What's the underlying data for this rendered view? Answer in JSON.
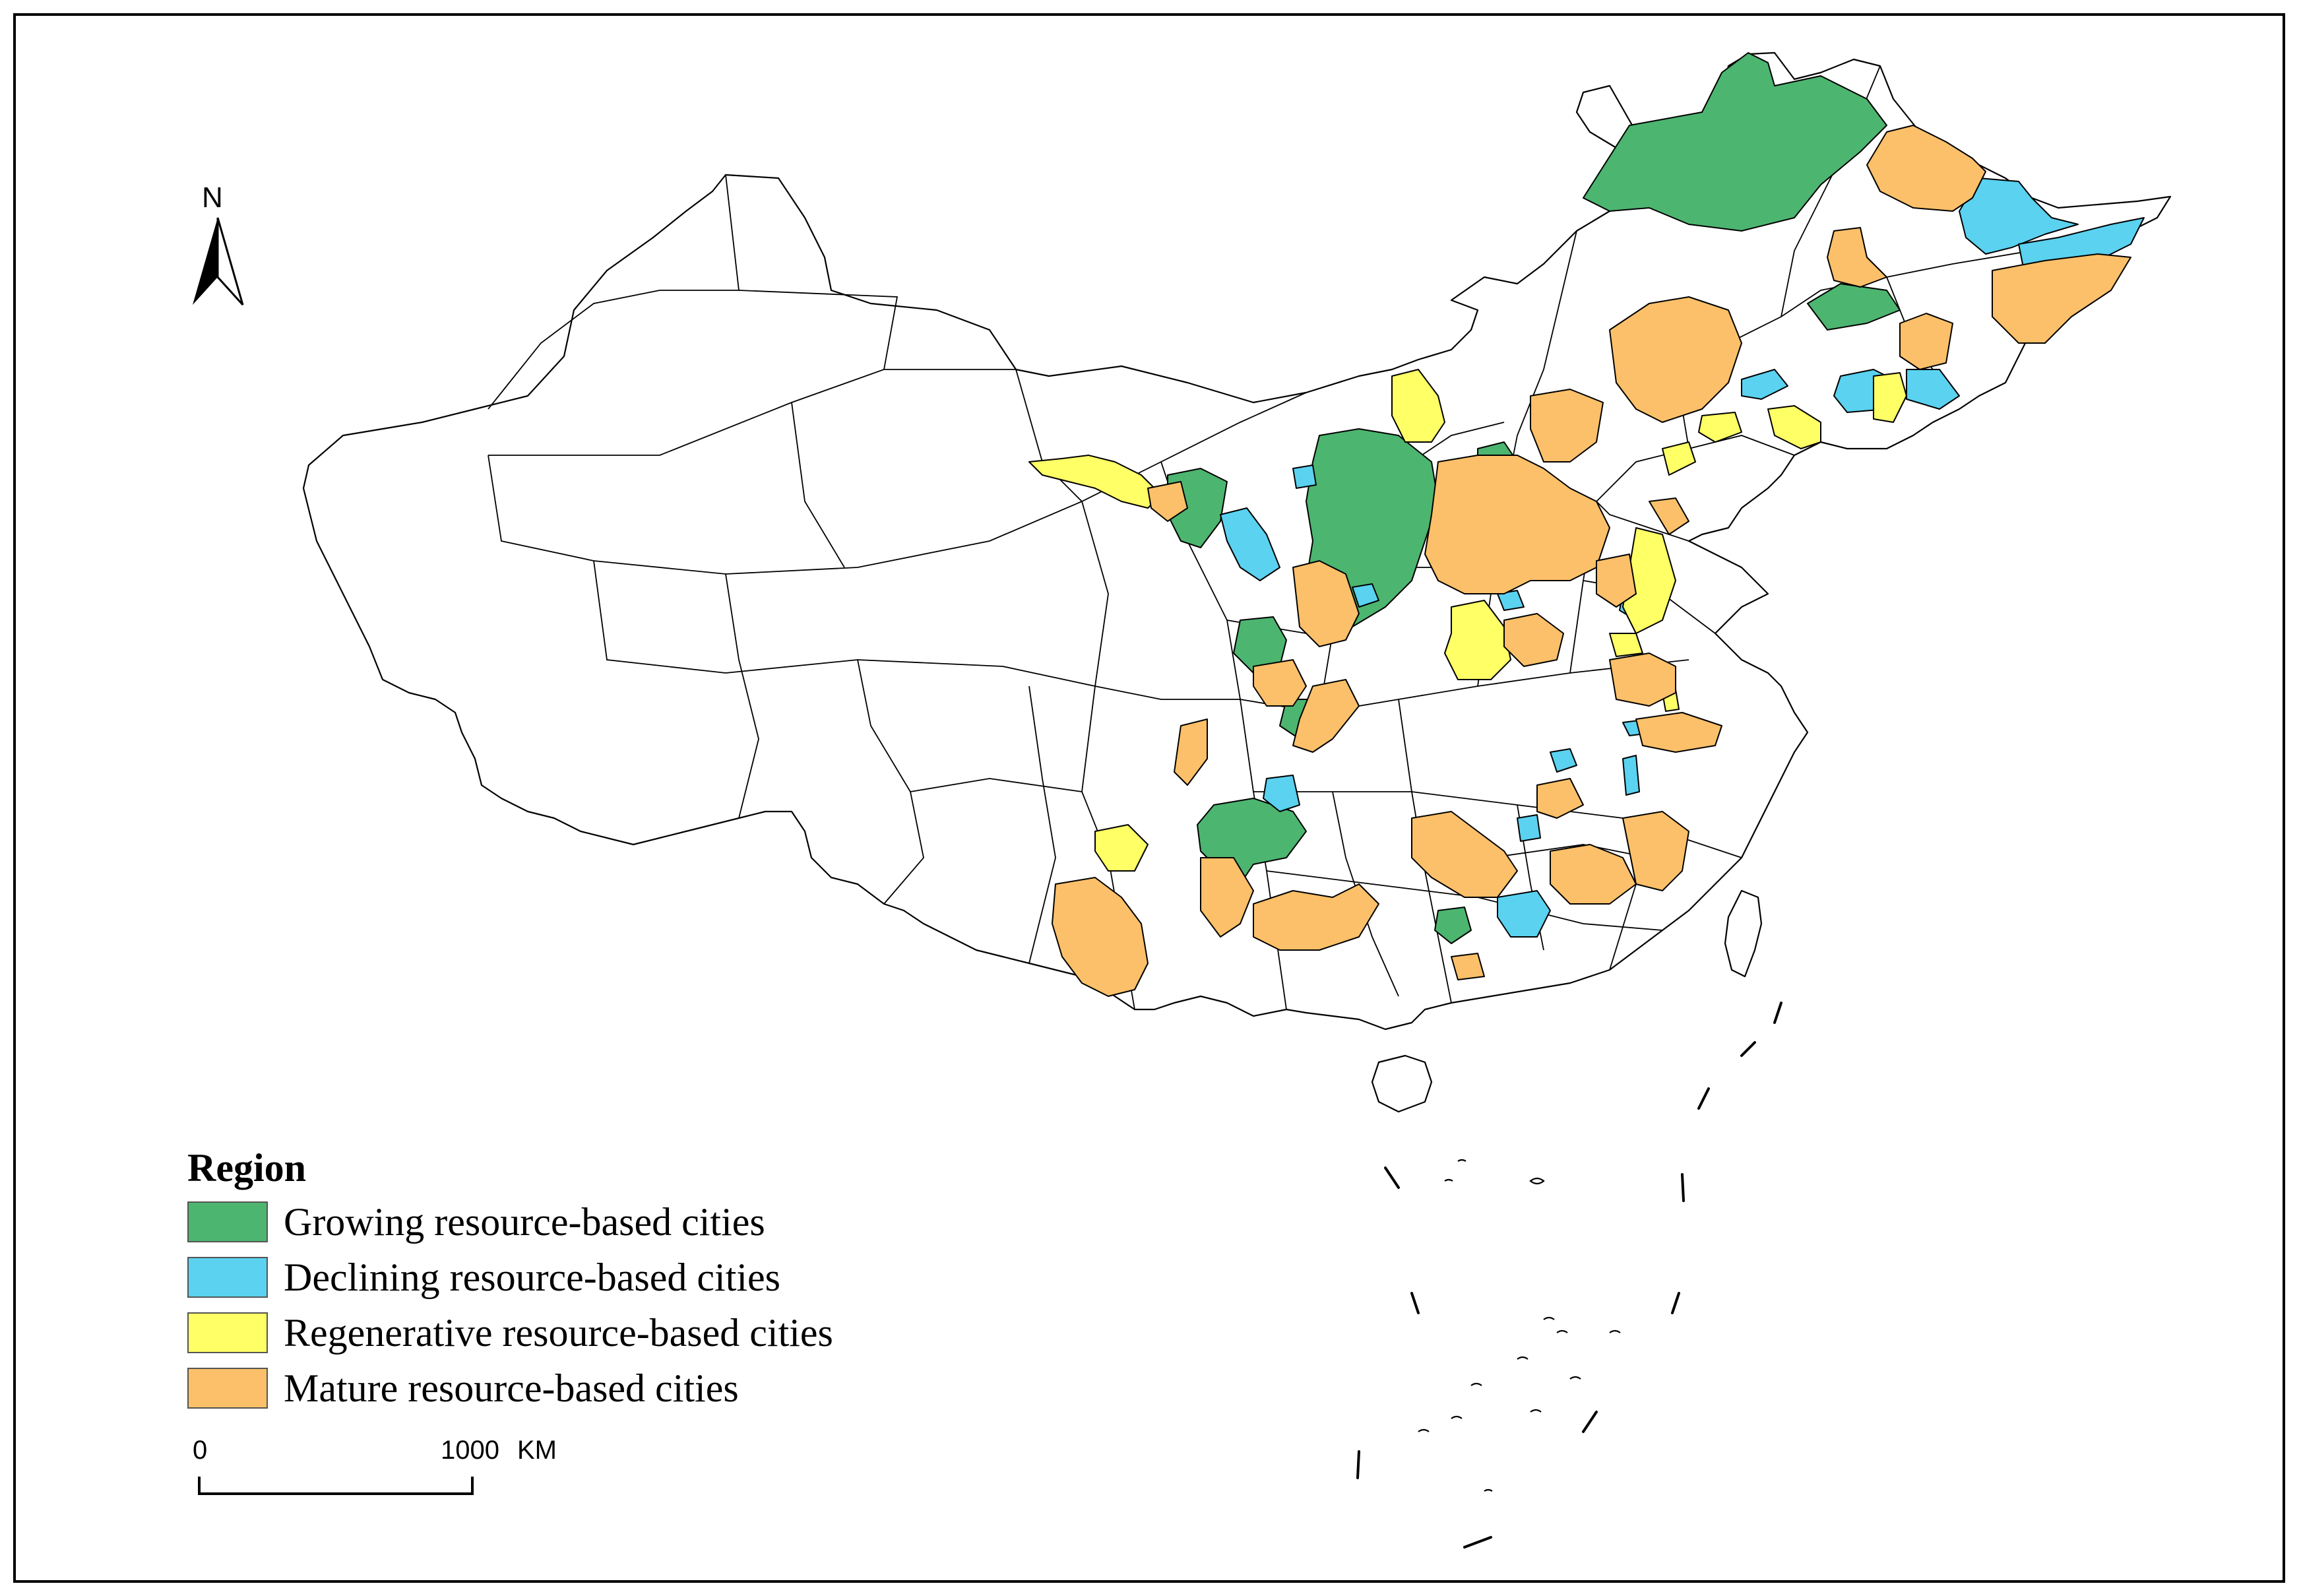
{
  "map": {
    "legend": {
      "title": "Region",
      "items": [
        {
          "label": "Growing resource-based cities",
          "color": "#4cb570"
        },
        {
          "label": "Declining resource-based cities",
          "color": "#5ad2f0"
        },
        {
          "label": "Regenerative resource-based cities",
          "color": "#ffff66"
        },
        {
          "label": "Mature resource-based cities",
          "color": "#fbc069"
        }
      ]
    },
    "north_arrow": {
      "label": "N"
    },
    "scale_bar": {
      "start": "0",
      "end": "1000",
      "unit": "KM"
    }
  }
}
